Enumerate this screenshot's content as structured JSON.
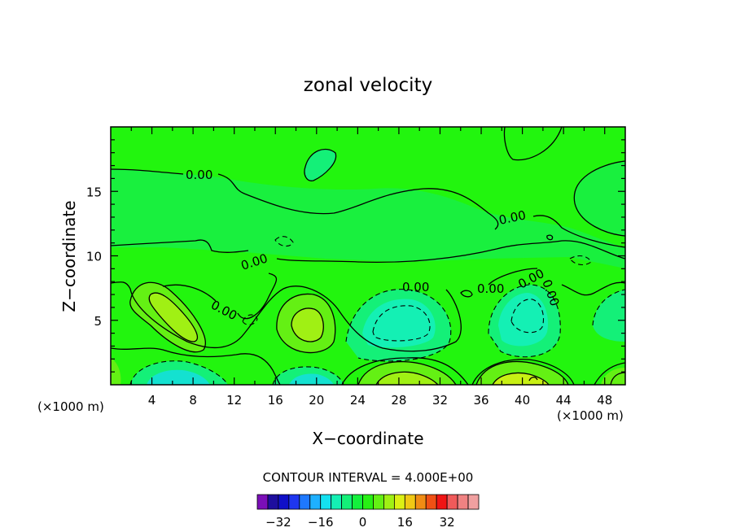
{
  "chart_data": {
    "type": "heatmap",
    "title": "zonal velocity",
    "xlabel": "X−coordinate",
    "ylabel": "Z−coordinate",
    "x_unit": "(×1000 m)",
    "xlim": [
      0,
      50
    ],
    "ylim": [
      0,
      20
    ],
    "x_ticks": [
      "4",
      "8",
      "12",
      "16",
      "20",
      "24",
      "28",
      "32",
      "36",
      "40",
      "44",
      "48"
    ],
    "y_ticks": [
      "5",
      "10",
      "15"
    ],
    "contour_interval_text": "CONTOUR INTERVAL = 4.000E+00",
    "contour_labels": [
      "0.00",
      "0.00",
      "0.00",
      "0.00",
      "0.00",
      "0.00",
      "0.00",
      "0.00"
    ],
    "colorbar": {
      "ticks": [
        "−32",
        "−16",
        "0",
        "16",
        "32"
      ],
      "colors": [
        "#7b0fb8",
        "#1e0e9e",
        "#1010c8",
        "#1e36f0",
        "#1e78ff",
        "#1eb0ff",
        "#14e1f0",
        "#14f0b4",
        "#14f078",
        "#14f03c",
        "#28f014",
        "#64f014",
        "#a0f014",
        "#dcf014",
        "#f0c814",
        "#f08c14",
        "#f05014",
        "#f01414",
        "#f05a5a",
        "#f08282",
        "#f0a0a0"
      ]
    },
    "regions": [
      {
        "label": "background",
        "color": "#22f50e"
      },
      {
        "label": "upper-band",
        "color": "#19f03e"
      },
      {
        "label": "weak-negative",
        "color": "#14f078"
      },
      {
        "label": "moderate-negative",
        "color": "#14f0b4"
      },
      {
        "label": "strong-negative",
        "color": "#14e1d0"
      },
      {
        "label": "weak-positive",
        "color": "#64f014"
      },
      {
        "label": "moderate-positive",
        "color": "#a0f014"
      },
      {
        "label": "strong-positive",
        "color": "#c8f014"
      }
    ]
  }
}
